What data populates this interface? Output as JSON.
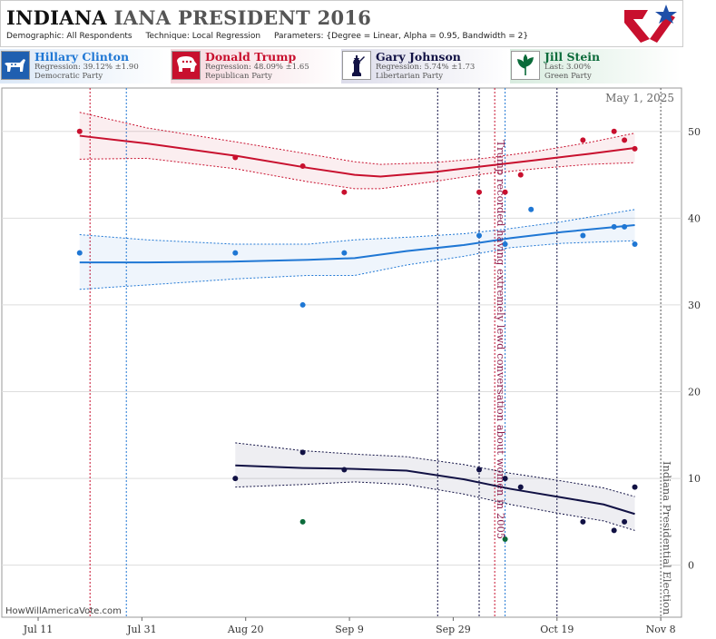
{
  "header": {
    "title_state": "INDIANA",
    "title_race": "IANA PRESIDENT 2016",
    "demographic": "Demographic: All Respondents",
    "technique": "Technique: Local Regression",
    "parameters": "Parameters: {Degree = Linear, Alpha = 0.95, Bandwidth = 2}"
  },
  "candidates": [
    {
      "name": "Hillary Clinton",
      "reg": "Regression: 39.12% ±1.90",
      "party": "Democratic Party",
      "color": "#1f77d4",
      "icon": "donkey-icon"
    },
    {
      "name": "Donald Trump",
      "reg": "Regression: 48.09% ±1.65",
      "party": "Republican Party",
      "color": "#c8102e",
      "icon": "elephant-icon"
    },
    {
      "name": "Gary Johnson",
      "reg": "Regression: 5.74% ±1.73",
      "party": "Libertarian Party",
      "color": "#111144",
      "icon": "liberty-icon"
    },
    {
      "name": "Jill Stein",
      "reg": "Last: 3.00%",
      "party": "Green Party",
      "color": "#0b6b3a",
      "icon": "leaf-icon"
    }
  ],
  "footer": "HowWillAmericaVote.com",
  "chart_data": {
    "type": "scatter",
    "date_label": "May 1, 2025",
    "x_ticks": [
      "Jul 11",
      "Jul 31",
      "Aug 20",
      "Sep 9",
      "Sep 29",
      "Oct 19",
      "Nov 8"
    ],
    "y_ticks": [
      0,
      10,
      20,
      30,
      40,
      50
    ],
    "ylim": [
      -6,
      55
    ],
    "xlim": [
      "2016-07-04",
      "2016-11-12"
    ],
    "annotations": [
      {
        "text": "Trump recorded having extremely lewd conversation about women in 2005",
        "date": "2016-10-07",
        "color": "#8b1a4a"
      },
      {
        "text": "Indiana Presidential Election",
        "date": "2016-11-08",
        "color": "#555555"
      }
    ],
    "vlines": [
      {
        "date": "2016-07-21",
        "color": "#c8102e"
      },
      {
        "date": "2016-07-28",
        "color": "#1f77d4"
      },
      {
        "date": "2016-09-26",
        "color": "#111144"
      },
      {
        "date": "2016-10-04",
        "color": "#111144"
      },
      {
        "date": "2016-10-07",
        "color": "#c8102e"
      },
      {
        "date": "2016-10-09",
        "color": "#1f77d4"
      },
      {
        "date": "2016-10-19",
        "color": "#111144"
      },
      {
        "date": "2016-11-08",
        "color": "#555555"
      }
    ],
    "series": [
      {
        "name": "Donald Trump",
        "color": "#c8102e",
        "points": [
          [
            "2016-07-19",
            50
          ],
          [
            "2016-08-18",
            47
          ],
          [
            "2016-08-31",
            46
          ],
          [
            "2016-09-08",
            43
          ],
          [
            "2016-10-04",
            43
          ],
          [
            "2016-10-09",
            43
          ],
          [
            "2016-10-12",
            45
          ],
          [
            "2016-10-24",
            49
          ],
          [
            "2016-10-30",
            50
          ],
          [
            "2016-11-01",
            49
          ],
          [
            "2016-11-03",
            48
          ]
        ],
        "trend": [
          [
            "2016-07-19",
            49.5
          ],
          [
            "2016-08-01",
            48.6
          ],
          [
            "2016-08-18",
            47.2
          ],
          [
            "2016-09-01",
            45.8
          ],
          [
            "2016-09-10",
            45.0
          ],
          [
            "2016-09-15",
            44.8
          ],
          [
            "2016-09-25",
            45.3
          ],
          [
            "2016-10-05",
            46.0
          ],
          [
            "2016-10-15",
            46.7
          ],
          [
            "2016-10-25",
            47.4
          ],
          [
            "2016-11-03",
            48.1
          ]
        ],
        "band": [
          [
            52.2,
            46.8
          ],
          [
            50.4,
            46.9
          ],
          [
            48.8,
            45.7
          ],
          [
            47.4,
            44.2
          ],
          [
            46.5,
            43.4
          ],
          [
            46.2,
            43.4
          ],
          [
            46.4,
            44.2
          ],
          [
            46.9,
            45.1
          ],
          [
            47.7,
            45.7
          ],
          [
            48.7,
            46.2
          ],
          [
            49.8,
            46.4
          ]
        ]
      },
      {
        "name": "Hillary Clinton",
        "color": "#1f77d4",
        "points": [
          [
            "2016-07-19",
            36
          ],
          [
            "2016-08-18",
            36
          ],
          [
            "2016-08-31",
            30
          ],
          [
            "2016-09-08",
            36
          ],
          [
            "2016-10-04",
            38
          ],
          [
            "2016-10-09",
            37
          ],
          [
            "2016-10-14",
            41
          ],
          [
            "2016-10-24",
            38
          ],
          [
            "2016-10-30",
            39
          ],
          [
            "2016-11-01",
            39
          ],
          [
            "2016-11-03",
            37
          ]
        ],
        "trend": [
          [
            "2016-07-19",
            34.9
          ],
          [
            "2016-08-01",
            34.9
          ],
          [
            "2016-08-18",
            35.0
          ],
          [
            "2016-09-01",
            35.2
          ],
          [
            "2016-09-10",
            35.4
          ],
          [
            "2016-09-20",
            36.2
          ],
          [
            "2016-10-01",
            36.9
          ],
          [
            "2016-10-10",
            37.7
          ],
          [
            "2016-10-20",
            38.4
          ],
          [
            "2016-11-03",
            39.2
          ]
        ],
        "band": [
          [
            38.1,
            31.8
          ],
          [
            37.5,
            32.3
          ],
          [
            37.0,
            33.0
          ],
          [
            37.0,
            33.4
          ],
          [
            37.5,
            33.4
          ],
          [
            37.8,
            34.6
          ],
          [
            38.2,
            35.6
          ],
          [
            38.8,
            36.6
          ],
          [
            39.6,
            37.1
          ],
          [
            41.0,
            37.4
          ]
        ]
      },
      {
        "name": "Gary Johnson",
        "color": "#111144",
        "points": [
          [
            "2016-08-18",
            10
          ],
          [
            "2016-08-31",
            13
          ],
          [
            "2016-09-08",
            11
          ],
          [
            "2016-10-04",
            11
          ],
          [
            "2016-10-09",
            10
          ],
          [
            "2016-10-12",
            9
          ],
          [
            "2016-10-24",
            5
          ],
          [
            "2016-10-30",
            4
          ],
          [
            "2016-11-01",
            5
          ],
          [
            "2016-11-03",
            9
          ]
        ],
        "trend": [
          [
            "2016-08-18",
            11.5
          ],
          [
            "2016-08-31",
            11.2
          ],
          [
            "2016-09-10",
            11.1
          ],
          [
            "2016-09-20",
            10.9
          ],
          [
            "2016-10-01",
            9.9
          ],
          [
            "2016-10-10",
            8.8
          ],
          [
            "2016-10-20",
            7.8
          ],
          [
            "2016-10-28",
            7.0
          ],
          [
            "2016-11-03",
            5.9
          ]
        ],
        "band": [
          [
            14.1,
            9.0
          ],
          [
            13.2,
            9.3
          ],
          [
            12.8,
            9.6
          ],
          [
            12.5,
            9.3
          ],
          [
            11.6,
            8.2
          ],
          [
            10.6,
            7.0
          ],
          [
            9.7,
            5.9
          ],
          [
            8.9,
            5.1
          ],
          [
            7.9,
            4.0
          ]
        ]
      },
      {
        "name": "Jill Stein",
        "color": "#0b6b3a",
        "points": [
          [
            "2016-08-31",
            5
          ],
          [
            "2016-10-09",
            3
          ]
        ]
      }
    ]
  }
}
